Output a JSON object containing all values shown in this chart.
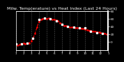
{
  "title": "Milw. Temp(erature) vs Heat Index (Last 24 Hours)",
  "background_color": "#000000",
  "plot_bg_color": "#000000",
  "grid_color": "#555555",
  "title_fontsize": 4.5,
  "title_color": "#ffffff",
  "red_line_color": "#ff0000",
  "black_marker_color": "#000000",
  "white_marker_color": "#ffffff",
  "ylim": [
    -20,
    80
  ],
  "xlim": [
    0,
    48
  ],
  "red_x": [
    0,
    1,
    2,
    3,
    4,
    5,
    6,
    7,
    8,
    9,
    10,
    11,
    12,
    13,
    14,
    15,
    16,
    17,
    18,
    19,
    20,
    21,
    22,
    23,
    24,
    25,
    26,
    27,
    28,
    29,
    30,
    31,
    32,
    33,
    34,
    35,
    36,
    37,
    38,
    39,
    40,
    41,
    42,
    43,
    44,
    45,
    46,
    47,
    48
  ],
  "red_y": [
    -5,
    -8,
    -6,
    -4,
    -3,
    -4,
    -3,
    -2,
    2,
    10,
    22,
    38,
    52,
    58,
    60,
    61,
    60,
    61,
    60,
    59,
    58,
    56,
    54,
    50,
    46,
    42,
    42,
    40,
    38,
    38,
    38,
    36,
    37,
    36,
    35,
    34,
    33,
    32,
    30,
    29,
    28,
    27,
    26,
    25,
    24,
    23,
    22,
    21,
    20
  ],
  "black_x": [
    0,
    3,
    6,
    9,
    12,
    15,
    18,
    21,
    24,
    27,
    30,
    33,
    36,
    39,
    42,
    45,
    48
  ],
  "black_y": [
    -5,
    -4,
    -3,
    10,
    58,
    61,
    60,
    54,
    46,
    40,
    38,
    37,
    37,
    28,
    24,
    23,
    20
  ],
  "xtick_positions": [
    0,
    4,
    8,
    12,
    16,
    20,
    24,
    28,
    32,
    36,
    40,
    44,
    48
  ],
  "xtick_labels": [
    "1",
    "2",
    "3",
    "4",
    "5",
    "6",
    "7",
    "8",
    "9",
    "10",
    "11",
    "12",
    "1"
  ],
  "ytick_positions_right": [
    0,
    20,
    40,
    60,
    80
  ],
  "ytick_labels_right": [
    "0",
    "20",
    "40",
    "60",
    "80"
  ],
  "vgrid_positions": [
    0,
    4,
    8,
    12,
    16,
    20,
    24,
    28,
    32,
    36,
    40,
    44,
    48
  ]
}
